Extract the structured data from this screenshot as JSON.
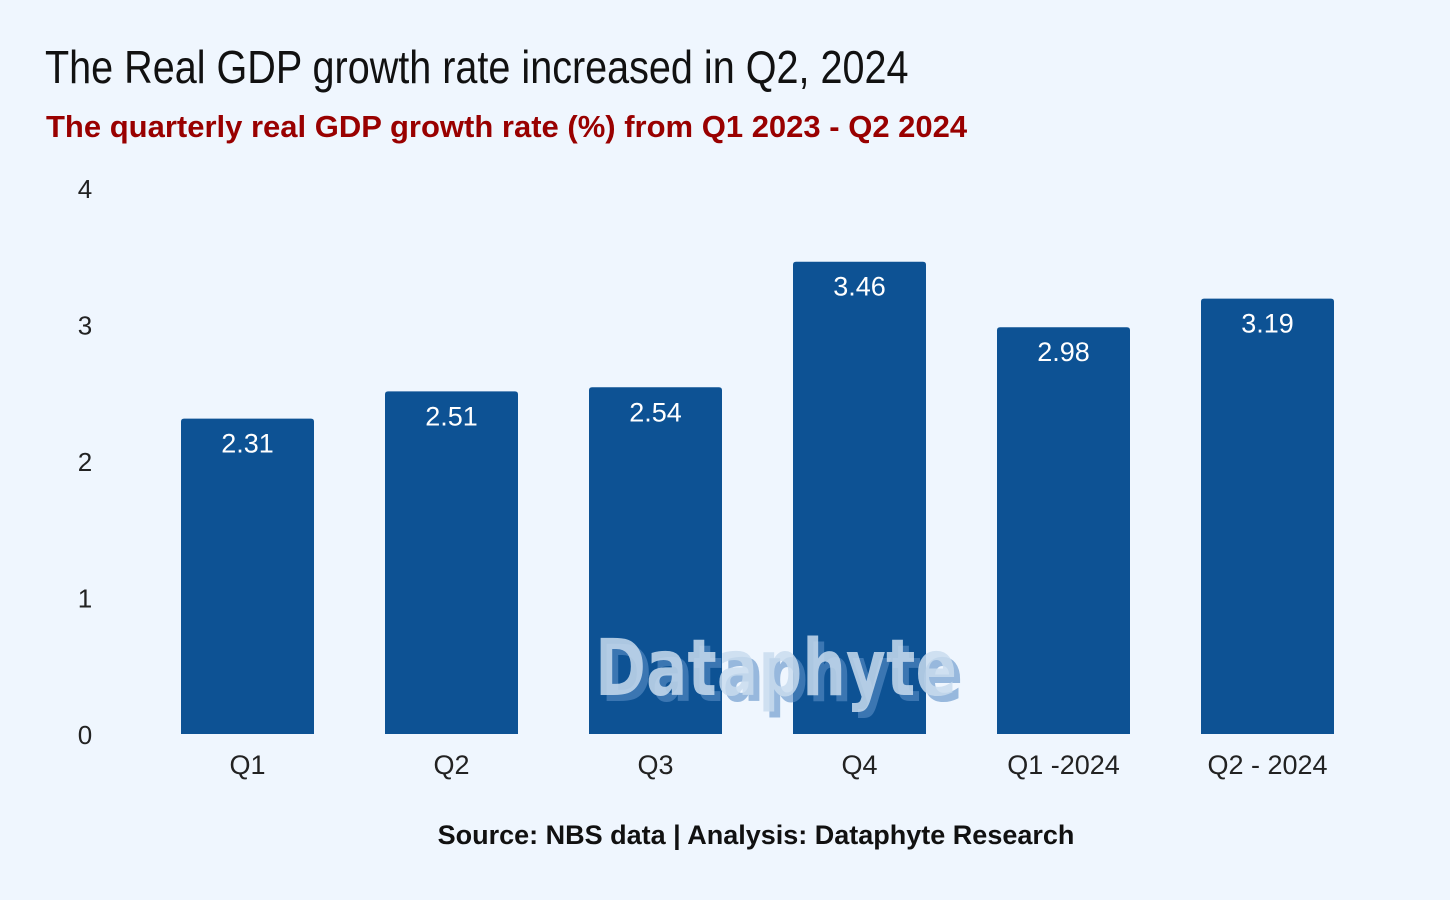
{
  "chart_data": {
    "type": "bar",
    "title": "The Real GDP growth rate increased in Q2, 2024",
    "subtitle": "The quarterly real GDP growth rate (%) from Q1 2023 - Q2 2024",
    "categories": [
      "Q1",
      "Q2",
      "Q3",
      "Q4",
      "Q1 -2024",
      "Q2 - 2024"
    ],
    "values": [
      2.31,
      2.51,
      2.54,
      3.46,
      2.98,
      3.19
    ],
    "value_labels": [
      "2.31",
      "2.51",
      "2.54",
      "3.46",
      "2.98",
      "3.19"
    ],
    "xlabel": "",
    "ylabel": "",
    "ylim": [
      0,
      4
    ],
    "yticks": [
      "0",
      "1",
      "2",
      "3",
      "4"
    ],
    "grid": false,
    "bar_color": "#0d5294",
    "source": "Source: NBS data | Analysis: Dataphyte Research",
    "watermark": "Dataphyte"
  }
}
